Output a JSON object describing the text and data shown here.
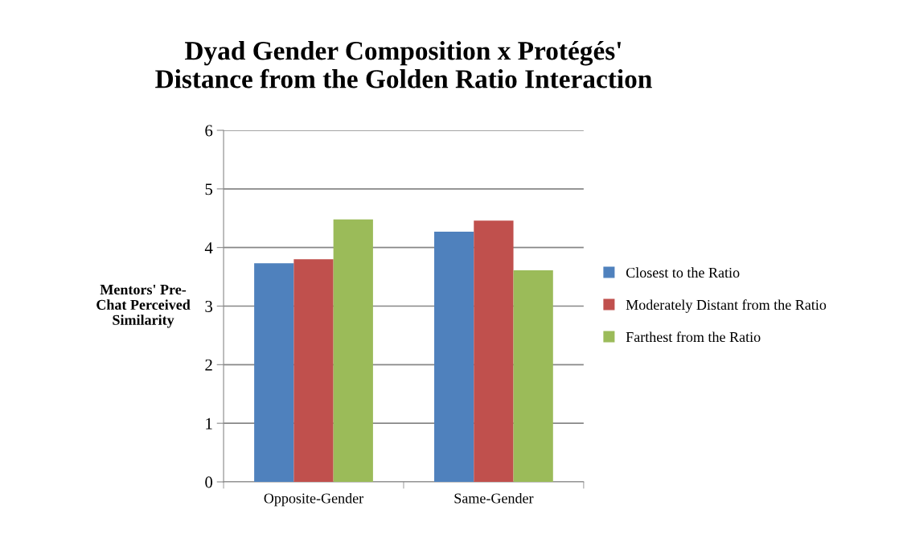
{
  "chart_data": {
    "type": "bar",
    "title": "Dyad Gender Composition x Protégés'\nDistance from the Golden Ratio Interaction",
    "ylabel": "Mentors' Pre-\nChat Perceived\nSimilarity",
    "categories": [
      "Opposite-Gender",
      "Same-Gender"
    ],
    "series": [
      {
        "name": "Closest to the Ratio",
        "color": "#4f81bd",
        "values": [
          3.73,
          4.27
        ]
      },
      {
        "name": "Moderately Distant from the Ratio",
        "color": "#c0504d",
        "values": [
          3.8,
          4.46
        ]
      },
      {
        "name": "Farthest from the Ratio",
        "color": "#9bbb59",
        "values": [
          4.48,
          3.61
        ]
      }
    ],
    "ylim": [
      0,
      6
    ],
    "yticks": [
      0,
      1,
      2,
      3,
      4,
      5,
      6
    ],
    "grid": "y",
    "legend": "right"
  }
}
